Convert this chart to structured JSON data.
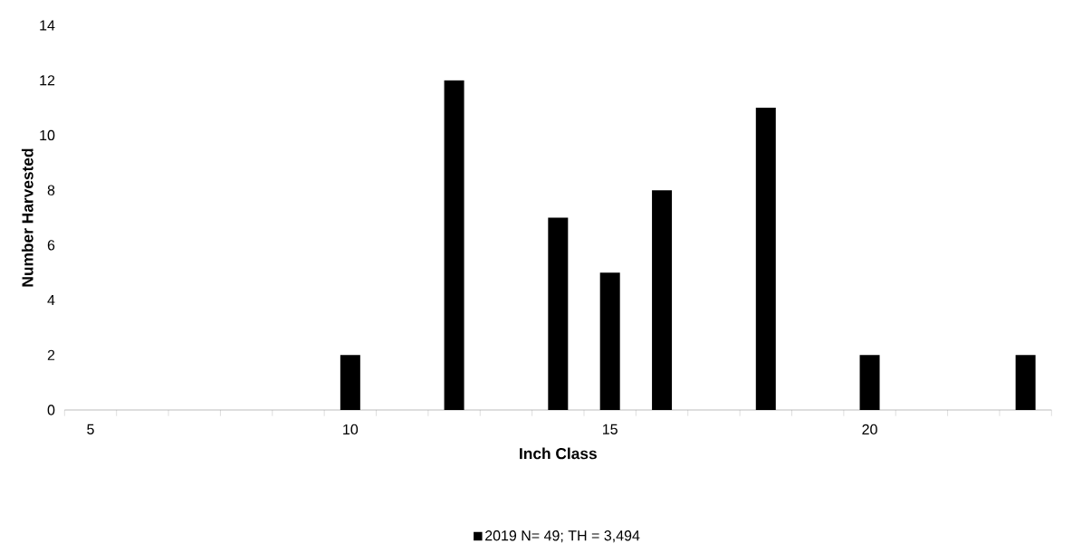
{
  "chart_data": {
    "type": "bar",
    "xlabel": "Inch Class",
    "ylabel": "Number Harvested",
    "categories": [
      "5",
      null,
      null,
      null,
      null,
      "10",
      null,
      null,
      null,
      null,
      "15",
      null,
      null,
      null,
      null,
      "20",
      null,
      null,
      null
    ],
    "series": [
      {
        "name": "2019 N= 49; TH = 3,494",
        "color": "#000000",
        "values": [
          0,
          0,
          0,
          0,
          0,
          2,
          0,
          12,
          0,
          7,
          5,
          8,
          0,
          11,
          0,
          2,
          0,
          0,
          2
        ]
      }
    ],
    "ylim": [
      0,
      14
    ],
    "yticks": [
      0,
      2,
      4,
      6,
      8,
      10,
      12,
      14
    ],
    "legend": "bottom"
  }
}
